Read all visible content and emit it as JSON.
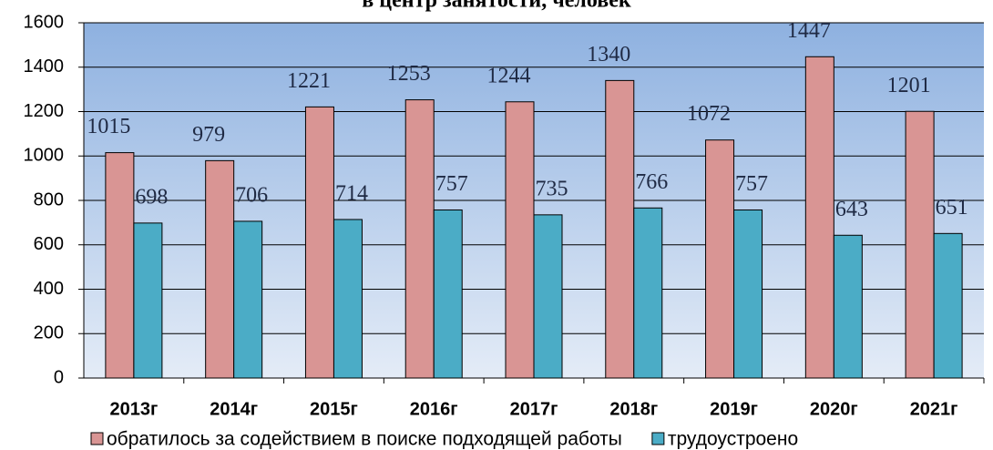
{
  "chart_data": {
    "type": "bar",
    "title": "в центр занятости, человек",
    "categories": [
      "2013г",
      "2014г",
      "2015г",
      "2016г",
      "2017г",
      "2018г",
      "2019г",
      "2020г",
      "2021г"
    ],
    "series": [
      {
        "name": "обратилось за содействием в поиске подходящей работы",
        "color": "#d99594",
        "values": [
          1015,
          979,
          1221,
          1253,
          1244,
          1340,
          1072,
          1447,
          1201
        ]
      },
      {
        "name": "трудоустроено",
        "color": "#4bacc6",
        "values": [
          698,
          706,
          714,
          757,
          735,
          766,
          757,
          643,
          651
        ]
      }
    ],
    "ylim": [
      0,
      1600
    ],
    "yticks": [
      0,
      200,
      400,
      600,
      800,
      1000,
      1200,
      1400,
      1600
    ],
    "grid": true,
    "legend": "bottom"
  }
}
